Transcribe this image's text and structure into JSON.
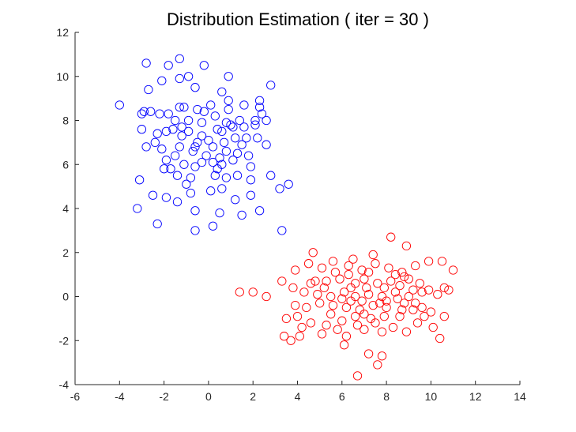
{
  "chart_data": {
    "type": "scatter",
    "title": "Distribution Estimation ( iter = 30 )",
    "xlabel": "",
    "ylabel": "",
    "xlim": [
      -6,
      14
    ],
    "ylim": [
      -4,
      12
    ],
    "xticks": [
      -6,
      -4,
      -2,
      0,
      2,
      4,
      6,
      8,
      10,
      12,
      14
    ],
    "yticks": [
      -4,
      -2,
      0,
      2,
      4,
      6,
      8,
      10,
      12
    ],
    "grid": false,
    "marker": "circle-open",
    "series": [
      {
        "color": "#0000ff",
        "points": [
          [
            -2.8,
            10.6
          ],
          [
            -1.8,
            10.5
          ],
          [
            -1.3,
            10.8
          ],
          [
            -0.2,
            10.5
          ],
          [
            0.9,
            10.0
          ],
          [
            -0.9,
            10.0
          ],
          [
            -1.3,
            9.9
          ],
          [
            -2.1,
            9.8
          ],
          [
            -0.6,
            9.5
          ],
          [
            2.8,
            9.6
          ],
          [
            -2.7,
            9.4
          ],
          [
            0.6,
            9.3
          ],
          [
            -4.0,
            8.7
          ],
          [
            -2.9,
            8.4
          ],
          [
            -3.0,
            8.3
          ],
          [
            -1.3,
            8.6
          ],
          [
            -1.1,
            8.6
          ],
          [
            -0.5,
            8.5
          ],
          [
            0.1,
            8.7
          ],
          [
            0.9,
            8.5
          ],
          [
            2.3,
            8.9
          ],
          [
            2.3,
            8.6
          ],
          [
            -2.6,
            8.4
          ],
          [
            -1.5,
            8.0
          ],
          [
            -0.3,
            7.9
          ],
          [
            0.8,
            7.9
          ],
          [
            1.4,
            8.0
          ],
          [
            2.1,
            8.0
          ],
          [
            2.6,
            8.0
          ],
          [
            -1.6,
            7.6
          ],
          [
            -0.9,
            7.5
          ],
          [
            -0.3,
            7.3
          ],
          [
            0.4,
            7.6
          ],
          [
            1.0,
            7.8
          ],
          [
            1.6,
            7.7
          ],
          [
            -3.0,
            7.6
          ],
          [
            -2.3,
            7.4
          ],
          [
            -1.9,
            7.5
          ],
          [
            -1.2,
            7.3
          ],
          [
            0.0,
            7.1
          ],
          [
            0.6,
            7.5
          ],
          [
            2.2,
            7.2
          ],
          [
            -2.8,
            6.8
          ],
          [
            -2.1,
            6.7
          ],
          [
            -1.3,
            6.8
          ],
          [
            -0.7,
            6.6
          ],
          [
            -0.1,
            6.4
          ],
          [
            0.8,
            6.6
          ],
          [
            1.3,
            6.5
          ],
          [
            2.6,
            6.9
          ],
          [
            -1.9,
            6.2
          ],
          [
            -1.1,
            6.0
          ],
          [
            -0.6,
            5.9
          ],
          [
            0.2,
            6.1
          ],
          [
            0.6,
            6.0
          ],
          [
            1.1,
            6.2
          ],
          [
            1.8,
            6.4
          ],
          [
            -2.0,
            5.8
          ],
          [
            -1.4,
            5.5
          ],
          [
            -0.8,
            5.4
          ],
          [
            0.3,
            5.5
          ],
          [
            0.8,
            5.4
          ],
          [
            1.3,
            5.5
          ],
          [
            1.9,
            5.3
          ],
          [
            2.8,
            5.5
          ],
          [
            -3.1,
            5.3
          ],
          [
            -2.5,
            4.6
          ],
          [
            -1.9,
            4.5
          ],
          [
            -0.8,
            4.7
          ],
          [
            0.1,
            4.8
          ],
          [
            0.6,
            4.9
          ],
          [
            1.2,
            4.4
          ],
          [
            1.9,
            4.6
          ],
          [
            3.2,
            4.9
          ],
          [
            3.6,
            5.1
          ],
          [
            -1.4,
            4.3
          ],
          [
            -0.6,
            3.9
          ],
          [
            0.5,
            3.8
          ],
          [
            1.5,
            3.7
          ],
          [
            2.3,
            3.9
          ],
          [
            -3.2,
            4.0
          ],
          [
            -2.3,
            3.3
          ],
          [
            -0.6,
            3.0
          ],
          [
            0.2,
            3.2
          ],
          [
            3.3,
            3.0
          ],
          [
            -1.8,
            8.3
          ],
          [
            -0.9,
            8.0
          ],
          [
            0.3,
            8.2
          ],
          [
            1.1,
            7.7
          ],
          [
            -0.5,
            7.0
          ],
          [
            0.2,
            6.8
          ],
          [
            -0.3,
            6.1
          ],
          [
            1.5,
            6.9
          ],
          [
            1.9,
            5.9
          ],
          [
            -1.2,
            7.7
          ],
          [
            -2.2,
            8.3
          ],
          [
            0.9,
            8.9
          ],
          [
            -0.6,
            6.8
          ],
          [
            1.7,
            7.2
          ],
          [
            -1.5,
            6.4
          ],
          [
            0.4,
            5.8
          ],
          [
            -2.4,
            7.0
          ],
          [
            2.4,
            8.3
          ],
          [
            1.2,
            7.2
          ],
          [
            -1.0,
            5.1
          ],
          [
            0.7,
            7.0
          ],
          [
            2.1,
            7.8
          ],
          [
            -0.2,
            8.4
          ],
          [
            1.6,
            8.7
          ],
          [
            0.5,
            6.3
          ],
          [
            -1.7,
            5.8
          ]
        ]
      },
      {
        "color": "#ff0000",
        "points": [
          [
            6.7,
            -3.6
          ],
          [
            7.6,
            -3.1
          ],
          [
            7.2,
            -2.6
          ],
          [
            7.8,
            -2.7
          ],
          [
            6.1,
            -2.2
          ],
          [
            3.4,
            -1.8
          ],
          [
            3.7,
            -2.0
          ],
          [
            4.1,
            -1.8
          ],
          [
            5.1,
            -1.7
          ],
          [
            6.2,
            -1.8
          ],
          [
            7.0,
            -1.5
          ],
          [
            7.8,
            -1.6
          ],
          [
            8.9,
            -1.6
          ],
          [
            10.4,
            -1.9
          ],
          [
            3.5,
            -1.0
          ],
          [
            4.0,
            -0.9
          ],
          [
            4.6,
            -1.2
          ],
          [
            5.3,
            -1.3
          ],
          [
            6.0,
            -1.1
          ],
          [
            6.6,
            -0.9
          ],
          [
            7.3,
            -1.0
          ],
          [
            7.9,
            -0.9
          ],
          [
            8.6,
            -0.9
          ],
          [
            9.4,
            -1.2
          ],
          [
            10.1,
            -1.4
          ],
          [
            3.9,
            -0.4
          ],
          [
            4.4,
            -0.5
          ],
          [
            5.0,
            -0.3
          ],
          [
            5.6,
            -0.4
          ],
          [
            6.2,
            -0.5
          ],
          [
            6.8,
            -0.6
          ],
          [
            7.4,
            -0.4
          ],
          [
            8.0,
            -0.5
          ],
          [
            8.7,
            -0.6
          ],
          [
            9.3,
            -0.3
          ],
          [
            10.0,
            -0.7
          ],
          [
            10.6,
            -0.9
          ],
          [
            1.4,
            0.2
          ],
          [
            2.0,
            0.2
          ],
          [
            2.6,
            0.0
          ],
          [
            3.3,
            0.7
          ],
          [
            3.8,
            0.4
          ],
          [
            4.3,
            0.2
          ],
          [
            4.9,
            0.1
          ],
          [
            5.5,
            0.0
          ],
          [
            6.1,
            0.2
          ],
          [
            6.6,
            0.0
          ],
          [
            7.2,
            0.1
          ],
          [
            7.8,
            0.0
          ],
          [
            8.4,
            0.2
          ],
          [
            9.0,
            0.0
          ],
          [
            9.6,
            0.2
          ],
          [
            10.3,
            0.1
          ],
          [
            10.6,
            0.4
          ],
          [
            3.9,
            1.2
          ],
          [
            4.5,
            1.5
          ],
          [
            5.1,
            1.3
          ],
          [
            5.7,
            1.1
          ],
          [
            6.3,
            1.4
          ],
          [
            6.9,
            1.2
          ],
          [
            7.5,
            1.5
          ],
          [
            8.1,
            1.3
          ],
          [
            8.7,
            1.1
          ],
          [
            9.3,
            1.4
          ],
          [
            9.9,
            1.6
          ],
          [
            10.5,
            1.6
          ],
          [
            11.0,
            1.2
          ],
          [
            4.7,
            2.0
          ],
          [
            5.6,
            1.6
          ],
          [
            6.5,
            1.7
          ],
          [
            7.4,
            1.9
          ],
          [
            8.2,
            2.7
          ],
          [
            8.9,
            2.3
          ],
          [
            6.6,
            0.6
          ],
          [
            7.0,
            0.8
          ],
          [
            7.6,
            0.6
          ],
          [
            8.2,
            0.7
          ],
          [
            8.8,
            0.9
          ],
          [
            9.5,
            0.6
          ],
          [
            5.3,
            0.7
          ],
          [
            5.9,
            0.8
          ],
          [
            4.8,
            0.7
          ],
          [
            6.0,
            -0.1
          ],
          [
            6.9,
            -0.2
          ],
          [
            7.7,
            -0.3
          ],
          [
            8.5,
            -0.1
          ],
          [
            9.2,
            -0.6
          ],
          [
            4.2,
            -1.4
          ],
          [
            5.8,
            -1.5
          ],
          [
            6.7,
            -1.3
          ],
          [
            7.5,
            -1.2
          ],
          [
            8.3,
            -1.4
          ],
          [
            9.7,
            -0.9
          ],
          [
            4.6,
            0.6
          ],
          [
            5.2,
            0.4
          ],
          [
            6.4,
            0.4
          ],
          [
            7.1,
            0.4
          ],
          [
            7.9,
            0.4
          ],
          [
            8.6,
            0.5
          ],
          [
            9.2,
            0.3
          ],
          [
            9.9,
            0.3
          ],
          [
            10.8,
            0.3
          ],
          [
            5.5,
            -0.8
          ],
          [
            6.4,
            -0.2
          ],
          [
            7.0,
            -0.8
          ],
          [
            8.0,
            -0.2
          ],
          [
            8.8,
            -0.3
          ],
          [
            9.6,
            -0.5
          ],
          [
            6.3,
            1.0
          ],
          [
            7.2,
            1.1
          ],
          [
            8.4,
            1.0
          ],
          [
            9.0,
            0.8
          ]
        ]
      }
    ]
  }
}
